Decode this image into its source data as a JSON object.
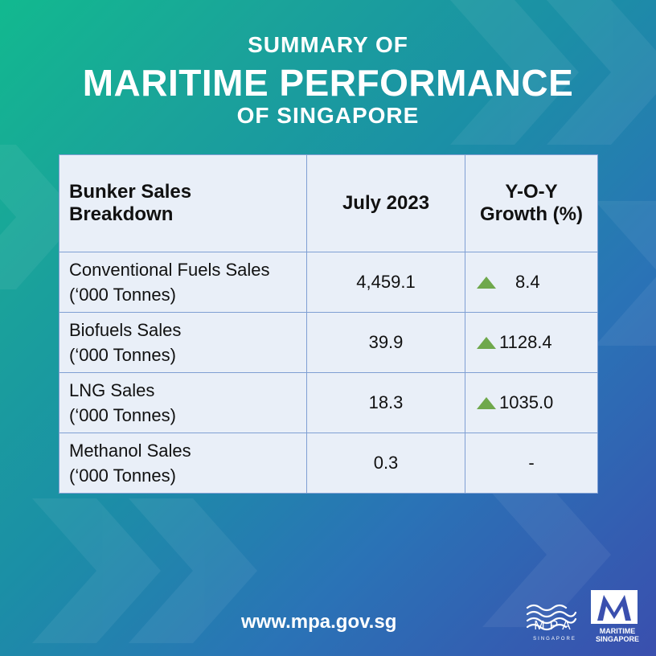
{
  "header": {
    "line1": "SUMMARY OF",
    "line2": "MARITIME PERFORMANCE",
    "line3": "OF SINGAPORE"
  },
  "table": {
    "headers": [
      "Bunker Sales Breakdown",
      "July 2023",
      "Y-O-Y Growth (%)"
    ],
    "rows": [
      {
        "label_line1": "Conventional Fuels Sales",
        "label_line2": "(‘000 Tonnes)",
        "value": "4,459.1",
        "growth": "8.4",
        "trend": "up"
      },
      {
        "label_line1": "Biofuels Sales",
        "label_line2": "(‘000 Tonnes)",
        "value": "39.9",
        "growth": "1128.4",
        "trend": "up"
      },
      {
        "label_line1": "LNG Sales",
        "label_line2": "(‘000 Tonnes)",
        "value": "18.3",
        "growth": "1035.0",
        "trend": "up"
      },
      {
        "label_line1": "Methanol Sales",
        "label_line2": "(‘000 Tonnes)",
        "value": "0.3",
        "growth": "-",
        "trend": "none"
      }
    ]
  },
  "footer": {
    "url": "www.mpa.gov.sg",
    "mpa_logo_text": "MPA",
    "mpa_logo_sub": "SINGAPORE",
    "maritime_logo_line1": "MARITIME",
    "maritime_logo_line2": "SINGAPORE"
  },
  "colors": {
    "up_arrow": "#6fa84c",
    "table_bg": "#e9eff8",
    "table_border": "#7f9fd3"
  }
}
